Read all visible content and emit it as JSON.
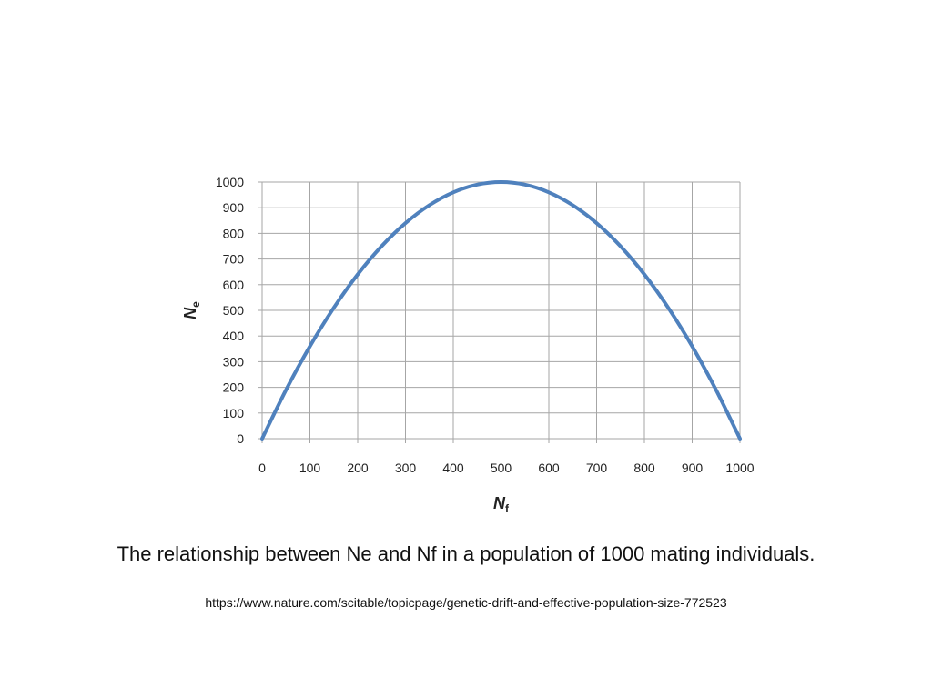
{
  "chart_data": {
    "type": "line",
    "xlabel": "Nf",
    "ylabel": "Ne",
    "x_ticks": [
      "0",
      "100",
      "200",
      "300",
      "400",
      "500",
      "600",
      "700",
      "800",
      "900",
      "1000"
    ],
    "y_ticks": [
      "0",
      "100",
      "200",
      "300",
      "400",
      "500",
      "600",
      "700",
      "800",
      "900",
      "1000"
    ],
    "xlim": [
      0,
      1000
    ],
    "ylim": [
      0,
      1000
    ],
    "grid": true,
    "legend": "none",
    "series": [
      {
        "color": "#4f81bd",
        "x": [
          0,
          50,
          100,
          150,
          200,
          250,
          300,
          350,
          400,
          450,
          500,
          550,
          600,
          650,
          700,
          750,
          800,
          850,
          900,
          950,
          1000
        ],
        "y": [
          0,
          190,
          360,
          510,
          640,
          750,
          840,
          910,
          960,
          990,
          1000,
          990,
          960,
          910,
          840,
          750,
          640,
          510,
          360,
          190,
          0
        ]
      }
    ]
  },
  "caption": "The relationship between Ne and Nf in a population of 1000 mating individuals.",
  "source_url": "https://www.nature.com/scitable/topicpage/genetic-drift-and-effective-population-size-772523"
}
